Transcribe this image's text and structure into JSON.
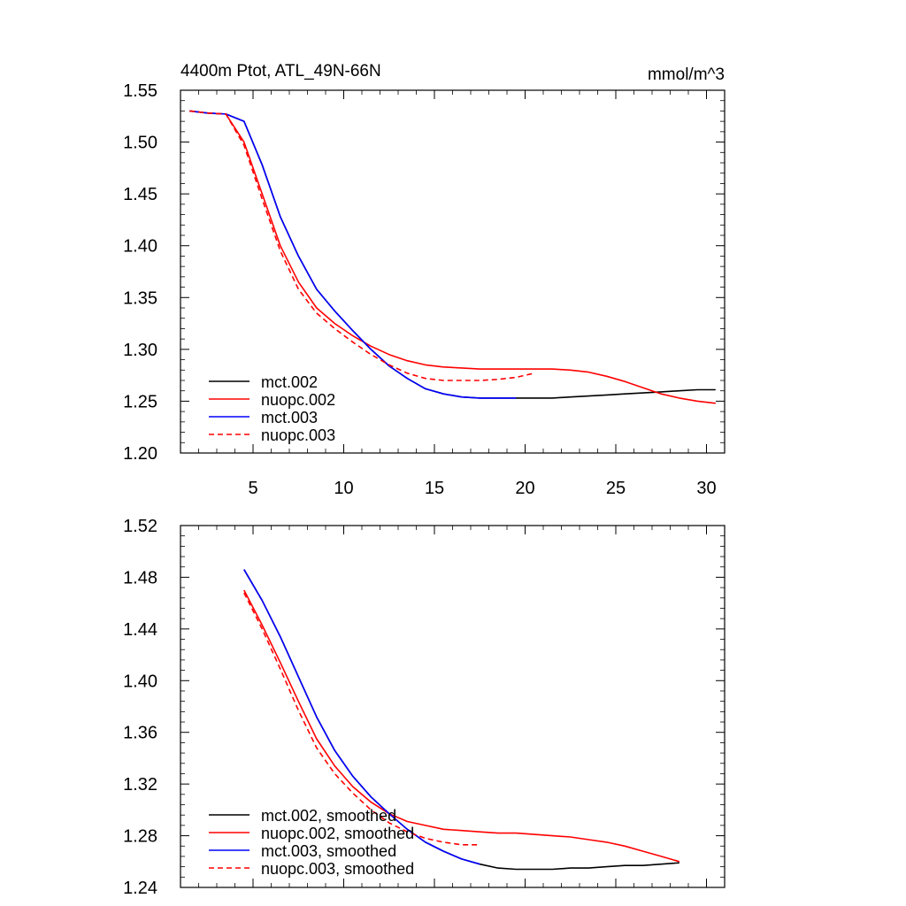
{
  "chart_data": [
    {
      "type": "line",
      "title": "4400m Ptot, ATL_49N-66N",
      "units": "mmol/m^3",
      "xlim": [
        1,
        31
      ],
      "ylim": [
        1.2,
        1.55
      ],
      "xticks": [
        5,
        10,
        15,
        20,
        25,
        30
      ],
      "yticks": [
        1.2,
        1.25,
        1.3,
        1.35,
        1.4,
        1.45,
        1.5,
        1.55
      ],
      "ytick_decimals": 2,
      "legend_position": "bottom-left",
      "series": [
        {
          "name": "mct.002",
          "color": "#000000",
          "dash": "solid",
          "x": [
            1.5,
            2.5,
            3.5,
            4.5,
            5.5,
            6.5,
            7.5,
            8.5,
            9.5,
            10.5,
            11.5,
            12.5,
            13.5,
            14.5,
            15.5,
            16.5,
            17.5,
            18.5,
            19.5,
            20.5,
            21.5,
            22.5,
            23.5,
            24.5,
            25.5,
            26.5,
            27.5,
            28.5,
            29.5,
            30.5
          ],
          "y": [
            1.53,
            1.528,
            1.527,
            1.52,
            1.478,
            1.428,
            1.39,
            1.358,
            1.337,
            1.318,
            1.3,
            1.284,
            1.272,
            1.262,
            1.257,
            1.254,
            1.253,
            1.253,
            1.253,
            1.253,
            1.253,
            1.254,
            1.255,
            1.256,
            1.257,
            1.258,
            1.259,
            1.26,
            1.261,
            1.261
          ]
        },
        {
          "name": "nuopc.002",
          "color": "#ff0000",
          "dash": "solid",
          "x": [
            1.5,
            2.5,
            3.5,
            4.5,
            5.5,
            6.5,
            7.5,
            8.5,
            9.5,
            10.5,
            11.5,
            12.5,
            13.5,
            14.5,
            15.5,
            16.5,
            17.5,
            18.5,
            19.5,
            20.5,
            21.5,
            22.5,
            23.5,
            24.5,
            25.5,
            26.5,
            27.5,
            28.5,
            29.5,
            30.5
          ],
          "y": [
            1.53,
            1.528,
            1.527,
            1.5,
            1.45,
            1.4,
            1.365,
            1.34,
            1.325,
            1.313,
            1.303,
            1.295,
            1.289,
            1.285,
            1.283,
            1.282,
            1.281,
            1.281,
            1.281,
            1.281,
            1.281,
            1.28,
            1.278,
            1.274,
            1.269,
            1.263,
            1.257,
            1.253,
            1.25,
            1.248
          ]
        },
        {
          "name": "mct.003",
          "color": "#0000ff",
          "dash": "solid",
          "x": [
            1.5,
            2.5,
            3.5,
            4.5,
            5.5,
            6.5,
            7.5,
            8.5,
            9.5,
            10.5,
            11.5,
            12.5,
            13.5,
            14.5,
            15.5,
            16.5,
            17.5,
            18.5,
            19.5
          ],
          "y": [
            1.53,
            1.528,
            1.527,
            1.52,
            1.478,
            1.428,
            1.39,
            1.358,
            1.337,
            1.318,
            1.3,
            1.284,
            1.272,
            1.262,
            1.257,
            1.254,
            1.253,
            1.253,
            1.253
          ]
        },
        {
          "name": "nuopc.003",
          "color": "#ff0000",
          "dash": "dashed",
          "x": [
            1.5,
            2.5,
            3.5,
            4.5,
            5.5,
            6.5,
            7.5,
            8.5,
            9.5,
            10.5,
            11.5,
            12.5,
            13.5,
            14.5,
            15.5,
            16.5,
            17.5,
            18.5,
            19.5,
            20.5
          ],
          "y": [
            1.53,
            1.528,
            1.527,
            1.497,
            1.445,
            1.395,
            1.358,
            1.335,
            1.32,
            1.307,
            1.295,
            1.285,
            1.277,
            1.272,
            1.27,
            1.27,
            1.27,
            1.271,
            1.273,
            1.277
          ]
        }
      ]
    },
    {
      "type": "line",
      "title": "",
      "units": "",
      "xlim": [
        1,
        31
      ],
      "ylim": [
        1.24,
        1.52
      ],
      "xticks": [
        5,
        10,
        15,
        20,
        25,
        30
      ],
      "xtick_labels_shown": false,
      "yticks": [
        1.24,
        1.28,
        1.32,
        1.36,
        1.4,
        1.44,
        1.48,
        1.52
      ],
      "ytick_decimals": 2,
      "legend_position": "bottom-left",
      "series": [
        {
          "name": "mct.002, smoothed",
          "color": "#000000",
          "dash": "solid",
          "x": [
            4.5,
            5.5,
            6.5,
            7.5,
            8.5,
            9.5,
            10.5,
            11.5,
            12.5,
            13.5,
            14.5,
            15.5,
            16.5,
            17.5,
            18.5,
            19.5,
            20.5,
            21.5,
            22.5,
            23.5,
            24.5,
            25.5,
            26.5,
            27.5,
            28.5
          ],
          "y": [
            1.486,
            1.462,
            1.434,
            1.403,
            1.372,
            1.346,
            1.326,
            1.31,
            1.297,
            1.285,
            1.275,
            1.268,
            1.262,
            1.258,
            1.255,
            1.254,
            1.254,
            1.254,
            1.255,
            1.255,
            1.256,
            1.257,
            1.257,
            1.258,
            1.259
          ]
        },
        {
          "name": "nuopc.002, smoothed",
          "color": "#ff0000",
          "dash": "solid",
          "x": [
            4.5,
            5.5,
            6.5,
            7.5,
            8.5,
            9.5,
            10.5,
            11.5,
            12.5,
            13.5,
            14.5,
            15.5,
            16.5,
            17.5,
            18.5,
            19.5,
            20.5,
            21.5,
            22.5,
            23.5,
            24.5,
            25.5,
            26.5,
            27.5,
            28.5
          ],
          "y": [
            1.47,
            1.443,
            1.414,
            1.384,
            1.355,
            1.334,
            1.318,
            1.306,
            1.297,
            1.291,
            1.288,
            1.285,
            1.284,
            1.283,
            1.282,
            1.282,
            1.281,
            1.28,
            1.279,
            1.277,
            1.275,
            1.272,
            1.268,
            1.264,
            1.26
          ]
        },
        {
          "name": "mct.003, smoothed",
          "color": "#0000ff",
          "dash": "solid",
          "x": [
            4.5,
            5.5,
            6.5,
            7.5,
            8.5,
            9.5,
            10.5,
            11.5,
            12.5,
            13.5,
            14.5,
            15.5,
            16.5,
            17.5
          ],
          "y": [
            1.486,
            1.462,
            1.434,
            1.403,
            1.372,
            1.346,
            1.326,
            1.31,
            1.297,
            1.285,
            1.275,
            1.268,
            1.262,
            1.258
          ]
        },
        {
          "name": "nuopc.003, smoothed",
          "color": "#ff0000",
          "dash": "dashed",
          "x": [
            4.5,
            5.5,
            6.5,
            7.5,
            8.5,
            9.5,
            10.5,
            11.5,
            12.5,
            13.5,
            14.5,
            15.5,
            16.5,
            17.5
          ],
          "y": [
            1.468,
            1.44,
            1.409,
            1.377,
            1.348,
            1.328,
            1.313,
            1.3,
            1.29,
            1.283,
            1.278,
            1.275,
            1.273,
            1.273
          ]
        }
      ]
    }
  ]
}
